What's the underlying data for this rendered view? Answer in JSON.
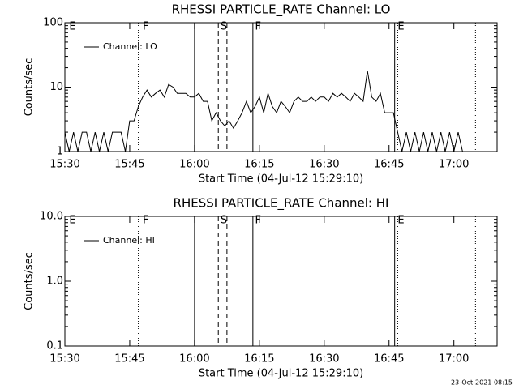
{
  "chart_data": [
    {
      "type": "line",
      "title": "RHESSI PARTICLE_RATE Channel: LO",
      "xlabel": "Start Time (04-Jul-12 15:29:10)",
      "ylabel": "Counts/sec",
      "x": [
        "15:30",
        "15:31",
        "15:32",
        "15:33",
        "15:34",
        "15:35",
        "15:36",
        "15:37",
        "15:38",
        "15:39",
        "15:40",
        "15:41",
        "15:42",
        "15:43",
        "15:44",
        "15:45",
        "15:46",
        "15:47",
        "15:48",
        "15:49",
        "15:50",
        "15:51",
        "15:52",
        "15:53",
        "15:54",
        "15:55",
        "15:56",
        "15:57",
        "15:58",
        "15:59",
        "16:00",
        "16:01",
        "16:02",
        "16:03",
        "16:04",
        "16:05",
        "16:06",
        "16:07",
        "16:08",
        "16:09",
        "16:10",
        "16:11",
        "16:12",
        "16:13",
        "16:14",
        "16:15",
        "16:16",
        "16:17",
        "16:18",
        "16:19",
        "16:20",
        "16:21",
        "16:22",
        "16:23",
        "16:24",
        "16:25",
        "16:26",
        "16:27",
        "16:28",
        "16:29",
        "16:30",
        "16:31",
        "16:32",
        "16:33",
        "16:34",
        "16:35",
        "16:36",
        "16:37",
        "16:38",
        "16:39",
        "16:40",
        "16:41",
        "16:42",
        "16:43",
        "16:44",
        "16:45",
        "16:46",
        "16:47",
        "16:48",
        "16:49",
        "16:50",
        "16:51",
        "16:52",
        "16:53",
        "16:54",
        "16:55",
        "16:56",
        "16:57",
        "16:58",
        "16:59",
        "17:00",
        "17:01",
        "17:02"
      ],
      "series": [
        {
          "name": "Channel: LO",
          "color": "#000000",
          "values": [
            2,
            1,
            2,
            1,
            2,
            2,
            1,
            2,
            1,
            2,
            1,
            2,
            2,
            2,
            1,
            3,
            3,
            5,
            7,
            9,
            7,
            8,
            9,
            7,
            11,
            10,
            8,
            8,
            8,
            7,
            7,
            8,
            6,
            6,
            3,
            4,
            3,
            2.5,
            3,
            2.3,
            3,
            4,
            6,
            4,
            5,
            7,
            4,
            8,
            5,
            4,
            6,
            5,
            4,
            6,
            7,
            6,
            6,
            7,
            6,
            7,
            7,
            6,
            8,
            7,
            8,
            7,
            6,
            8,
            7,
            6,
            18,
            7,
            6,
            8,
            4,
            4,
            4,
            2,
            1,
            2,
            1,
            2,
            1,
            2,
            1,
            2,
            1,
            2,
            1,
            2,
            1,
            2,
            1
          ]
        }
      ],
      "xlim": [
        "15:30",
        "17:10"
      ],
      "xticks": [
        "15:30",
        "15:45",
        "16:00",
        "16:15",
        "16:30",
        "16:45",
        "17:00"
      ],
      "ylim": [
        1,
        100
      ],
      "yticks": [
        1,
        10,
        100
      ],
      "log_y": true,
      "legend": "upper left",
      "annotations": [
        {
          "text": "E",
          "x": "15:31"
        },
        {
          "text": "F",
          "x": "15:48"
        },
        {
          "text": "S",
          "x": "16:06"
        },
        {
          "text": "F",
          "x": "16:14"
        },
        {
          "text": "E",
          "x": "16:47"
        }
      ],
      "vlines": [
        {
          "x": "15:47",
          "style": "dotted"
        },
        {
          "x": "16:00",
          "style": "solid"
        },
        {
          "x": "16:05.5",
          "style": "dashed"
        },
        {
          "x": "16:07.5",
          "style": "dashed"
        },
        {
          "x": "16:13.5",
          "style": "solid"
        },
        {
          "x": "16:46.3",
          "style": "solid"
        },
        {
          "x": "16:47",
          "style": "dotted"
        },
        {
          "x": "17:05",
          "style": "dotted"
        }
      ]
    },
    {
      "type": "line",
      "title": "RHESSI PARTICLE_RATE Channel: HI",
      "xlabel": "Start Time (04-Jul-12 15:29:10)",
      "ylabel": "Counts/sec",
      "x": [],
      "series": [
        {
          "name": "Channel: HI",
          "color": "#000000",
          "values": []
        }
      ],
      "xlim": [
        "15:30",
        "17:10"
      ],
      "xticks": [
        "15:30",
        "15:45",
        "16:00",
        "16:15",
        "16:30",
        "16:45",
        "17:00"
      ],
      "ylim": [
        0.1,
        10
      ],
      "yticks": [
        0.1,
        {
          "value": 1,
          "label": "1.0"
        },
        {
          "value": 10,
          "label": "10.0"
        }
      ],
      "log_y": true,
      "legend": "upper left",
      "annotations": [
        {
          "text": "E",
          "x": "15:31"
        },
        {
          "text": "F",
          "x": "15:48"
        },
        {
          "text": "S",
          "x": "16:06"
        },
        {
          "text": "F",
          "x": "16:14"
        },
        {
          "text": "E",
          "x": "16:47"
        }
      ],
      "vlines": [
        {
          "x": "15:47",
          "style": "dotted"
        },
        {
          "x": "16:00",
          "style": "solid"
        },
        {
          "x": "16:05.5",
          "style": "dashed"
        },
        {
          "x": "16:07.5",
          "style": "dashed"
        },
        {
          "x": "16:13.5",
          "style": "solid"
        },
        {
          "x": "16:46.3",
          "style": "solid"
        },
        {
          "x": "16:47",
          "style": "dotted"
        },
        {
          "x": "17:05",
          "style": "dotted"
        }
      ]
    }
  ],
  "footer": "23-Oct-2021 08:15"
}
